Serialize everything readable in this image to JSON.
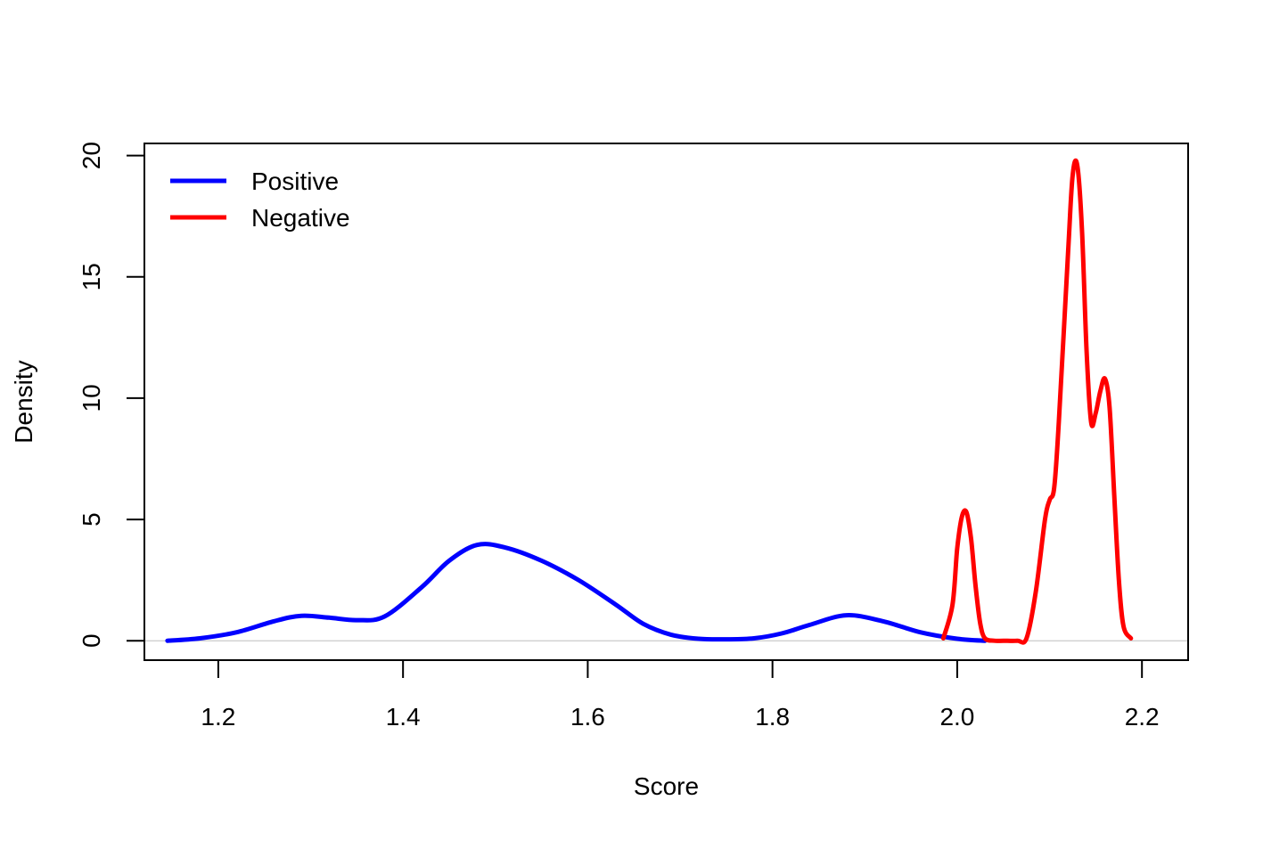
{
  "chart_data": {
    "type": "line",
    "xlabel": "Score",
    "ylabel": "Density",
    "xlim": [
      1.12,
      2.25
    ],
    "ylim": [
      -0.8,
      20.5
    ],
    "x_ticks": [
      "1.2",
      "1.4",
      "1.6",
      "1.8",
      "2.0",
      "2.2"
    ],
    "y_ticks": [
      "0",
      "5",
      "10",
      "15",
      "20"
    ],
    "legend": {
      "position": "top-left"
    },
    "baseline": 0,
    "series": [
      {
        "name": "Positive",
        "color": "#0000ff",
        "x": [
          1.145,
          1.18,
          1.22,
          1.26,
          1.29,
          1.32,
          1.35,
          1.38,
          1.42,
          1.45,
          1.48,
          1.51,
          1.55,
          1.59,
          1.63,
          1.66,
          1.69,
          1.72,
          1.75,
          1.78,
          1.81,
          1.84,
          1.88,
          1.92,
          1.96,
          2.0,
          2.03
        ],
        "y": [
          0.0,
          0.1,
          0.35,
          0.8,
          1.03,
          0.95,
          0.85,
          1.0,
          2.2,
          3.3,
          3.95,
          3.85,
          3.3,
          2.5,
          1.5,
          0.7,
          0.25,
          0.08,
          0.06,
          0.1,
          0.3,
          0.65,
          1.05,
          0.8,
          0.35,
          0.08,
          0.0
        ]
      },
      {
        "name": "Negative",
        "color": "#ff0000",
        "x": [
          1.985,
          1.995,
          2.0,
          2.005,
          2.01,
          2.015,
          2.02,
          2.025,
          2.03,
          2.04,
          2.05,
          2.065,
          2.075,
          2.085,
          2.095,
          2.1,
          2.105,
          2.11,
          2.12,
          2.125,
          2.13,
          2.135,
          2.14,
          2.145,
          2.15,
          2.155,
          2.16,
          2.165,
          2.17,
          2.175,
          2.18,
          2.188
        ],
        "y": [
          0.1,
          1.5,
          3.8,
          5.1,
          5.3,
          4.2,
          2.2,
          0.7,
          0.1,
          0.0,
          0.0,
          0.0,
          0.1,
          2.0,
          5.0,
          5.8,
          6.3,
          9.0,
          16.0,
          19.2,
          19.6,
          17.0,
          12.0,
          9.0,
          9.4,
          10.3,
          10.8,
          9.6,
          6.0,
          2.5,
          0.6,
          0.1
        ]
      }
    ]
  }
}
